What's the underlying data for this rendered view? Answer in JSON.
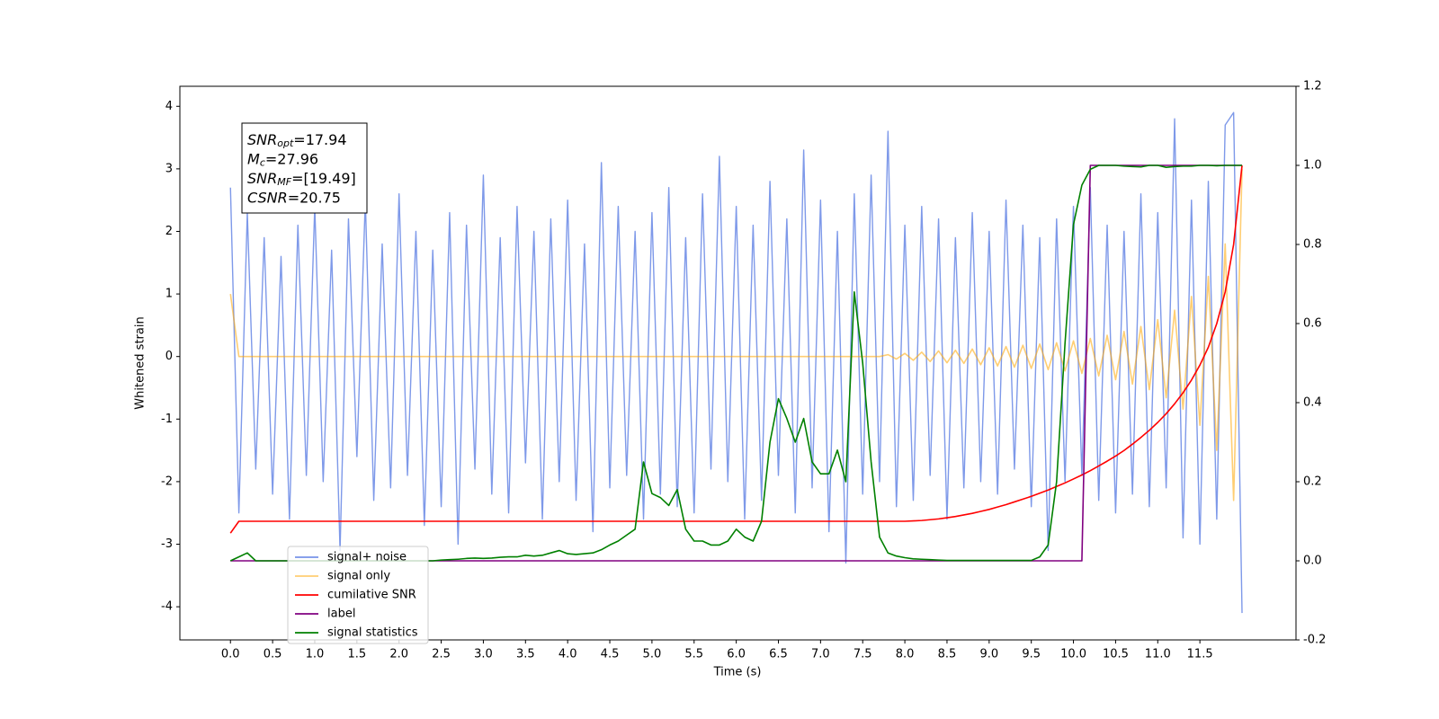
{
  "chart_data": {
    "type": "line",
    "xlabel": "Time (s)",
    "ylabel": "Whitened strain",
    "annotations": [
      {
        "symbol": "SNR",
        "subscript": "opt",
        "text": "=17.94"
      },
      {
        "symbol": "M",
        "subscript": "c",
        "text": "=27.96"
      },
      {
        "symbol": "SNR",
        "subscript": "MF",
        "text": "=[19.49]"
      },
      {
        "symbol": "CSNR",
        "text": "=20.75"
      }
    ],
    "legend": "lower left",
    "xlim": [
      -0.6,
      12.64
    ],
    "xticks": [
      {
        "value": 0,
        "label": "0.0"
      },
      0.5,
      {
        "value": 1,
        "label": "1.0"
      },
      1.5,
      {
        "value": 2,
        "label": "2.0"
      },
      2.5,
      {
        "value": 3,
        "label": "3.0"
      },
      3.5,
      {
        "value": 4,
        "label": "4.0"
      },
      4.5,
      {
        "value": 5,
        "label": "5.0"
      },
      5.5,
      {
        "value": 6,
        "label": "6.0"
      },
      6.5,
      {
        "value": 7,
        "label": "7.0"
      },
      7.5,
      {
        "value": 8,
        "label": "8.0"
      },
      8.5,
      {
        "value": 9,
        "label": "9.0"
      },
      9.5,
      {
        "value": 10,
        "label": "10.0"
      },
      10.5,
      {
        "value": 11,
        "label": "11.0"
      },
      11.5
    ],
    "ylim": [
      -4.53,
      4.32
    ],
    "yticks": [
      -4,
      -3,
      -2,
      -1,
      0,
      1,
      2,
      3,
      4
    ],
    "y2lim": [
      -0.2,
      1.2
    ],
    "y2ticks": [
      -0.2,
      {
        "value": 0,
        "label": "0.0"
      },
      0.2,
      0.4,
      0.6,
      0.8,
      {
        "value": 1,
        "label": "1.0"
      },
      1.2
    ],
    "x": [
      0,
      0.1,
      0.2,
      0.3,
      0.4,
      0.5,
      0.6,
      0.7,
      0.8,
      0.9,
      1,
      1.1,
      1.2,
      1.3,
      1.4,
      1.5,
      1.6,
      1.7,
      1.8,
      1.9,
      2,
      2.1,
      2.2,
      2.3,
      2.4,
      2.5,
      2.6,
      2.7,
      2.8,
      2.9,
      3,
      3.1,
      3.2,
      3.3,
      3.4,
      3.5,
      3.6,
      3.7,
      3.8,
      3.9,
      4,
      4.1,
      4.2,
      4.3,
      4.4,
      4.5,
      4.6,
      4.7,
      4.8,
      4.9,
      5,
      5.1,
      5.2,
      5.3,
      5.4,
      5.5,
      5.6,
      5.7,
      5.8,
      5.9,
      6,
      6.1,
      6.2,
      6.3,
      6.4,
      6.5,
      6.6,
      6.7,
      6.8,
      6.9,
      7,
      7.1,
      7.2,
      7.3,
      7.4,
      7.5,
      7.6,
      7.7,
      7.8,
      7.9,
      8,
      8.1,
      8.2,
      8.3,
      8.4,
      8.5,
      8.6,
      8.7,
      8.8,
      8.9,
      9,
      9.1,
      9.2,
      9.3,
      9.4,
      9.5,
      9.6,
      9.7,
      9.8,
      9.9,
      10,
      10.1,
      10.2,
      10.3,
      10.4,
      10.5,
      10.6,
      10.7,
      10.8,
      10.9,
      11,
      11.1,
      11.2,
      11.3,
      11.4,
      11.5,
      11.6,
      11.7,
      11.8,
      11.9,
      12
    ],
    "series": [
      {
        "name": "signal+ noise",
        "color": "#7793e8",
        "values": [
          2.7,
          -2.5,
          2.3,
          -1.8,
          1.9,
          -2.2,
          1.6,
          -2.6,
          2.1,
          -1.9,
          2.4,
          -2.0,
          1.7,
          -3.1,
          2.2,
          -1.6,
          2.5,
          -2.3,
          1.8,
          -2.1,
          2.6,
          -1.9,
          2.0,
          -2.7,
          1.7,
          -2.4,
          2.3,
          -3.0,
          2.1,
          -1.8,
          2.9,
          -2.2,
          1.9,
          -2.5,
          2.4,
          -1.7,
          2.0,
          -2.6,
          2.2,
          -2.0,
          2.5,
          -2.3,
          1.8,
          -2.8,
          3.1,
          -2.1,
          2.4,
          -1.9,
          2.0,
          -2.6,
          2.3,
          -2.2,
          2.7,
          -2.4,
          1.9,
          -2.5,
          2.6,
          -1.8,
          3.2,
          -2.0,
          2.4,
          -2.6,
          2.1,
          -2.3,
          2.8,
          -1.9,
          2.2,
          -2.5,
          3.3,
          -2.1,
          2.5,
          -2.8,
          2.0,
          -3.3,
          2.6,
          -2.2,
          2.9,
          -2.0,
          3.6,
          -2.4,
          2.1,
          -2.3,
          2.4,
          -1.9,
          2.2,
          -2.6,
          1.9,
          -2.1,
          2.3,
          -2.0,
          2.0,
          -2.2,
          2.5,
          -1.8,
          2.1,
          -2.4,
          1.9,
          -3.1,
          2.2,
          -2.0,
          2.4,
          -1.9,
          2.7,
          -2.3,
          2.1,
          -2.5,
          2.0,
          -2.2,
          2.6,
          -2.4,
          2.3,
          -2.1,
          3.8,
          -2.9,
          2.5,
          -3.0,
          2.8,
          -2.6,
          3.7,
          3.9,
          -4.1
        ]
      },
      {
        "name": "signal only",
        "color": "#ffa500",
        "values": [
          1.0,
          0,
          0,
          0,
          0,
          0,
          0,
          0,
          0,
          0,
          0,
          0,
          0,
          0,
          0,
          0,
          0,
          0,
          0,
          0,
          0,
          0,
          0,
          0,
          0,
          0,
          0,
          0,
          0,
          0,
          0,
          0,
          0,
          0,
          0,
          0,
          0,
          0,
          0,
          0,
          0,
          0,
          0,
          0,
          0,
          0,
          0,
          0,
          0,
          0,
          0,
          0,
          0,
          0,
          0,
          0,
          0,
          0,
          0,
          0,
          0,
          0,
          0,
          0,
          0,
          0,
          0,
          0,
          0,
          0,
          0,
          0,
          0,
          0,
          0,
          0,
          0,
          0,
          0.03,
          -0.04,
          0.05,
          -0.06,
          0.07,
          -0.08,
          0.09,
          -0.1,
          0.1,
          -0.11,
          0.12,
          -0.13,
          0.14,
          -0.15,
          0.16,
          -0.17,
          0.18,
          -0.19,
          0.2,
          -0.21,
          0.22,
          -0.23,
          0.25,
          -0.27,
          0.29,
          -0.31,
          0.34,
          -0.37,
          0.4,
          -0.44,
          0.48,
          -0.53,
          0.59,
          -0.66,
          0.74,
          -0.84,
          0.96,
          -1.1,
          1.28,
          -1.5,
          1.8,
          -2.3,
          3.0
        ]
      },
      {
        "name": "cumilative SNR",
        "color": "#ff0000",
        "axis": "y2",
        "values": [
          0.07,
          0.1,
          0.1,
          0.1,
          0.1,
          0.1,
          0.1,
          0.1,
          0.1,
          0.1,
          0.1,
          0.1,
          0.1,
          0.1,
          0.1,
          0.1,
          0.1,
          0.1,
          0.1,
          0.1,
          0.1,
          0.1,
          0.1,
          0.1,
          0.1,
          0.1,
          0.1,
          0.1,
          0.1,
          0.1,
          0.1,
          0.1,
          0.1,
          0.1,
          0.1,
          0.1,
          0.1,
          0.1,
          0.1,
          0.1,
          0.1,
          0.1,
          0.1,
          0.1,
          0.1,
          0.1,
          0.1,
          0.1,
          0.1,
          0.1,
          0.1,
          0.1,
          0.1,
          0.1,
          0.1,
          0.1,
          0.1,
          0.1,
          0.1,
          0.1,
          0.1,
          0.1,
          0.1,
          0.1,
          0.1,
          0.1,
          0.1,
          0.1,
          0.1,
          0.1,
          0.1,
          0.1,
          0.1,
          0.1,
          0.1,
          0.1,
          0.1,
          0.1,
          0.1,
          0.1,
          0.1,
          0.101,
          0.102,
          0.104,
          0.106,
          0.109,
          0.112,
          0.116,
          0.12,
          0.125,
          0.13,
          0.136,
          0.142,
          0.149,
          0.156,
          0.163,
          0.171,
          0.179,
          0.188,
          0.197,
          0.207,
          0.217,
          0.228,
          0.24,
          0.252,
          0.265,
          0.279,
          0.295,
          0.312,
          0.33,
          0.35,
          0.372,
          0.397,
          0.425,
          0.457,
          0.495,
          0.54,
          0.6,
          0.68,
          0.8,
          1.0
        ]
      },
      {
        "name": "label",
        "color": "#800080",
        "axis": "y2",
        "values": [
          0,
          0,
          0,
          0,
          0,
          0,
          0,
          0,
          0,
          0,
          0,
          0,
          0,
          0,
          0,
          0,
          0,
          0,
          0,
          0,
          0,
          0,
          0,
          0,
          0,
          0,
          0,
          0,
          0,
          0,
          0,
          0,
          0,
          0,
          0,
          0,
          0,
          0,
          0,
          0,
          0,
          0,
          0,
          0,
          0,
          0,
          0,
          0,
          0,
          0,
          0,
          0,
          0,
          0,
          0,
          0,
          0,
          0,
          0,
          0,
          0,
          0,
          0,
          0,
          0,
          0,
          0,
          0,
          0,
          0,
          0,
          0,
          0,
          0,
          0,
          0,
          0,
          0,
          0,
          0,
          0,
          0,
          0,
          0,
          0,
          0,
          0,
          0,
          0,
          0,
          0,
          0,
          0,
          0,
          0,
          0,
          0,
          0,
          0,
          0,
          0,
          0,
          1,
          1,
          1,
          1,
          1,
          1,
          1,
          1,
          1,
          1,
          1,
          1,
          1,
          1,
          1,
          1,
          1,
          1,
          1
        ]
      },
      {
        "name": "signal statistics",
        "color": "#008000",
        "axis": "y2",
        "values": [
          0,
          0.01,
          0.02,
          0,
          0,
          0,
          0,
          0,
          0,
          0,
          0,
          0,
          0,
          0,
          0,
          0,
          0,
          0,
          0,
          0,
          0,
          0,
          0,
          0,
          0,
          0.002,
          0.003,
          0.004,
          0.006,
          0.007,
          0.006,
          0.007,
          0.009,
          0.01,
          0.01,
          0.014,
          0.012,
          0.014,
          0.02,
          0.026,
          0.018,
          0.016,
          0.018,
          0.02,
          0.028,
          0.04,
          0.05,
          0.065,
          0.08,
          0.25,
          0.17,
          0.16,
          0.14,
          0.18,
          0.08,
          0.05,
          0.05,
          0.04,
          0.04,
          0.05,
          0.08,
          0.06,
          0.05,
          0.1,
          0.3,
          0.41,
          0.36,
          0.3,
          0.36,
          0.25,
          0.22,
          0.22,
          0.28,
          0.2,
          0.68,
          0.5,
          0.25,
          0.06,
          0.02,
          0.012,
          0.008,
          0.005,
          0.004,
          0.003,
          0.002,
          0.001,
          0.001,
          0.001,
          0.001,
          0.001,
          0.001,
          0.001,
          0.001,
          0.001,
          0.001,
          0.001,
          0.01,
          0.04,
          0.2,
          0.55,
          0.85,
          0.95,
          0.99,
          1.0,
          1.0,
          1.0,
          0.998,
          0.997,
          0.996,
          1.0,
          1.0,
          0.995,
          0.997,
          0.998,
          0.998,
          1.0,
          1.0,
          0.999,
          1.0,
          1.0,
          1.0
        ]
      }
    ]
  }
}
